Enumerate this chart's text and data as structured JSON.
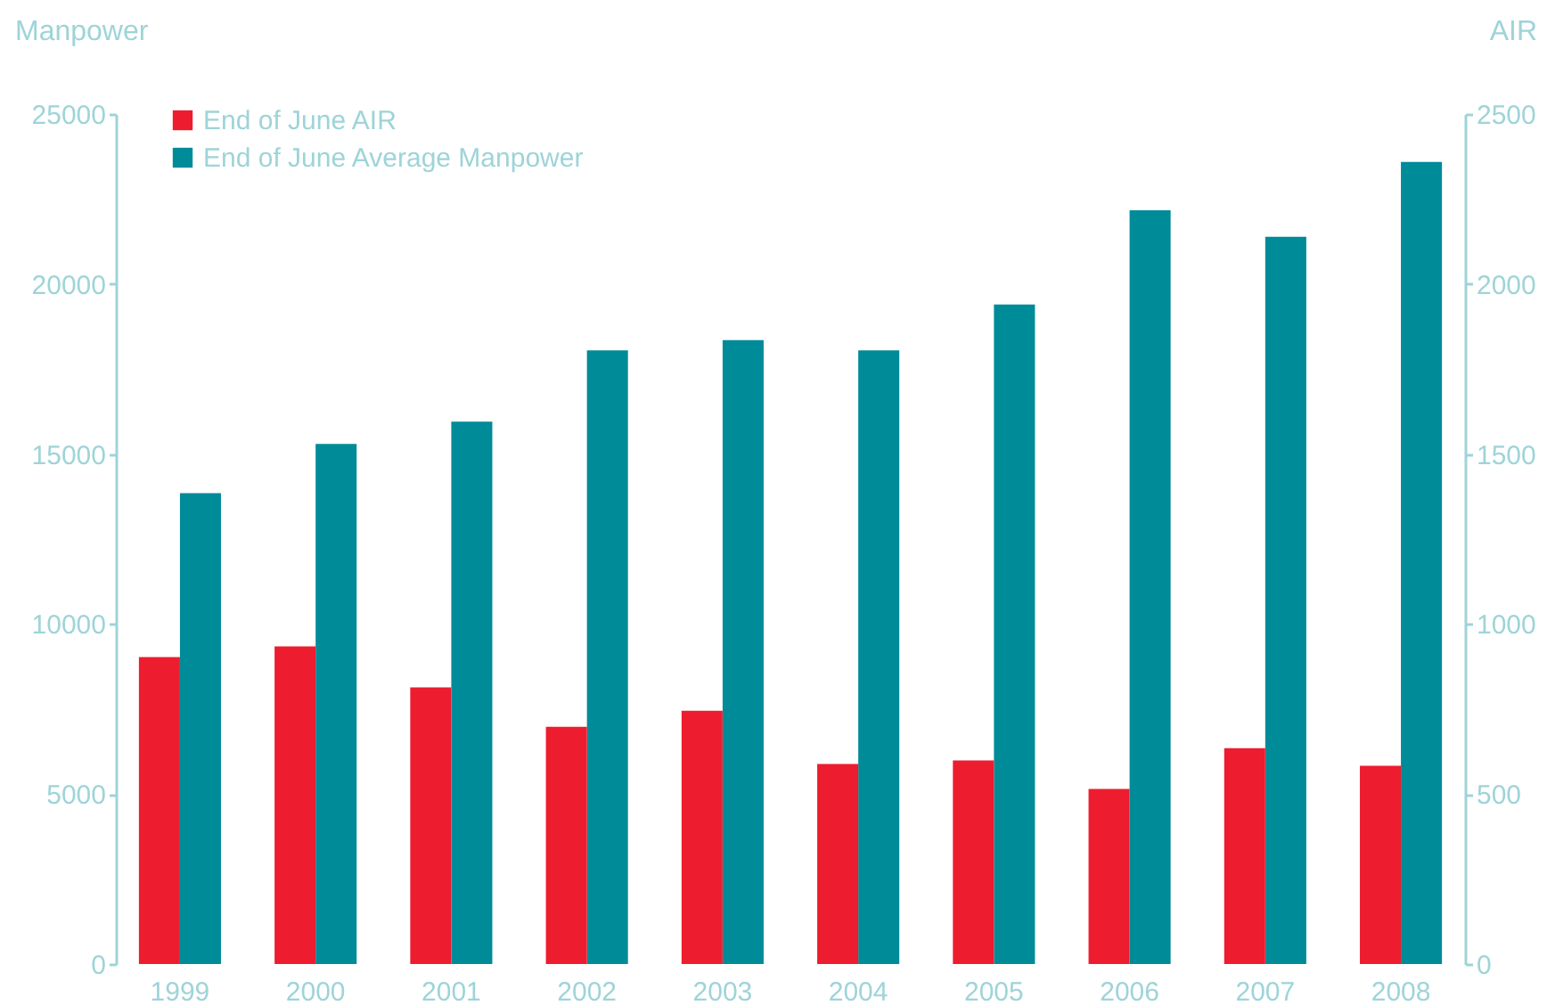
{
  "chart_data": {
    "type": "bar",
    "categories": [
      "1999",
      "2000",
      "2001",
      "2002",
      "2003",
      "2004",
      "2005",
      "2006",
      "2007",
      "2008"
    ],
    "ylabel": "Manpower",
    "y2label": "AIR",
    "ylim": [
      0,
      25000
    ],
    "yticks": [
      0,
      5000,
      10000,
      15000,
      20000,
      25000
    ],
    "y2lim": [
      0,
      2500
    ],
    "y2ticks": [
      0,
      500,
      1000,
      1500,
      2000,
      2500
    ],
    "series": [
      {
        "name": "End of June AIR",
        "color": "#ed1c2e",
        "axis": "y2",
        "values": [
          903,
          934,
          814,
          698,
          745,
          588,
          599,
          515,
          635,
          583
        ]
      },
      {
        "name": "End of June Average Manpower",
        "color": "#008b99",
        "values": [
          13850,
          15300,
          15950,
          18050,
          18350,
          18050,
          19400,
          22170,
          21390,
          23590
        ]
      }
    ],
    "legend": "top left",
    "grid": false
  }
}
